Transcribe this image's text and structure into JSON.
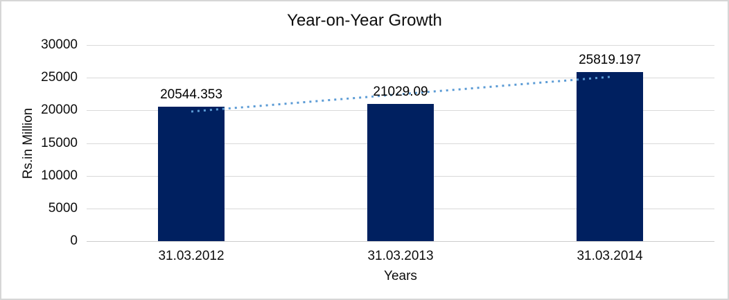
{
  "chart_data": {
    "type": "bar",
    "title": "Year-on-Year Growth",
    "categories": [
      "31.03.2012",
      "31.03.2013",
      "31.03.2014"
    ],
    "values": [
      20544.353,
      21029.09,
      25819.197
    ],
    "value_labels": [
      "20544.353",
      "21029.09",
      "25819.197"
    ],
    "xlabel": "Years",
    "ylabel": "Rs.in Million",
    "ylim": [
      0,
      30000
    ],
    "yticks": [
      0,
      5000,
      10000,
      15000,
      20000,
      25000,
      30000
    ],
    "grid": true,
    "legend": false,
    "bar_color": "#002060",
    "gridline_color": "#d9d9d9",
    "trendline": {
      "type": "linear",
      "style": "dotted",
      "color": "#5b9bd5"
    }
  }
}
